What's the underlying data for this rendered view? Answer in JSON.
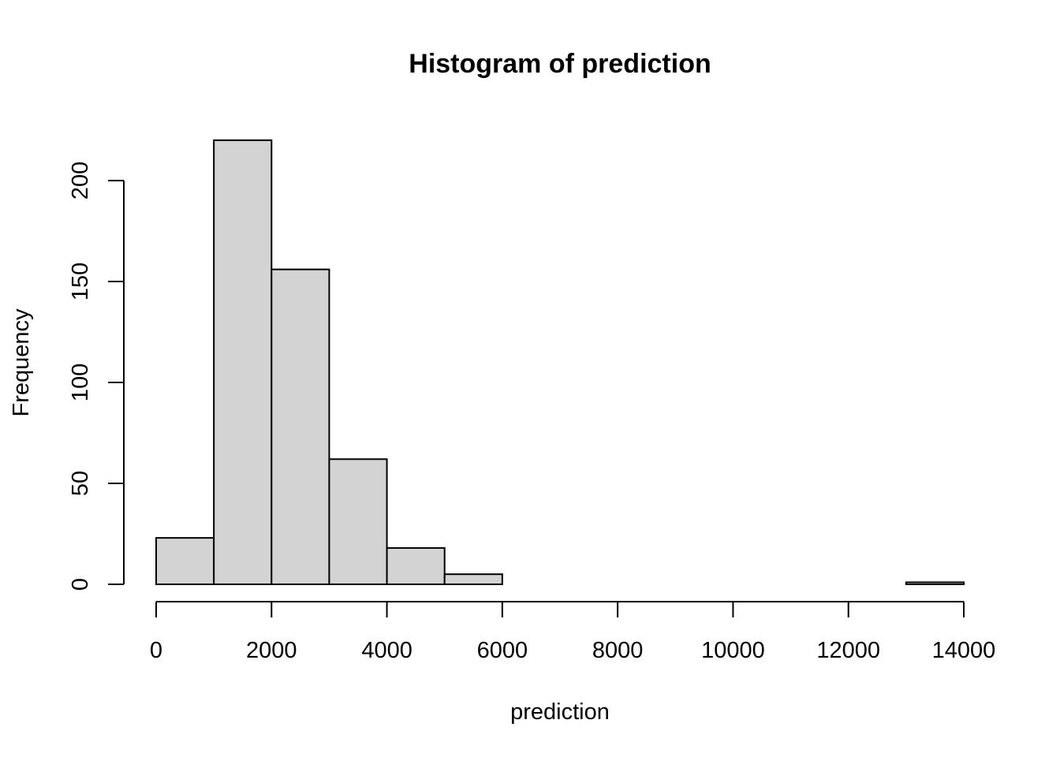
{
  "chart_data": {
    "type": "bar",
    "title": "Histogram of prediction",
    "xlabel": "prediction",
    "ylabel": "Frequency",
    "bin_edges": [
      0,
      1000,
      2000,
      3000,
      4000,
      5000,
      6000,
      7000,
      8000,
      9000,
      10000,
      11000,
      12000,
      13000,
      14000
    ],
    "values": [
      23,
      220,
      156,
      62,
      18,
      5,
      0,
      0,
      0,
      0,
      0,
      0,
      0,
      1
    ],
    "xlim": [
      0,
      14000
    ],
    "ylim": [
      0,
      200
    ],
    "x_ticks": [
      0,
      2000,
      4000,
      6000,
      8000,
      10000,
      12000,
      14000
    ],
    "y_ticks": [
      0,
      50,
      100,
      150,
      200
    ],
    "bar_color": "#d3d3d3",
    "grid": false,
    "legend": "none"
  }
}
